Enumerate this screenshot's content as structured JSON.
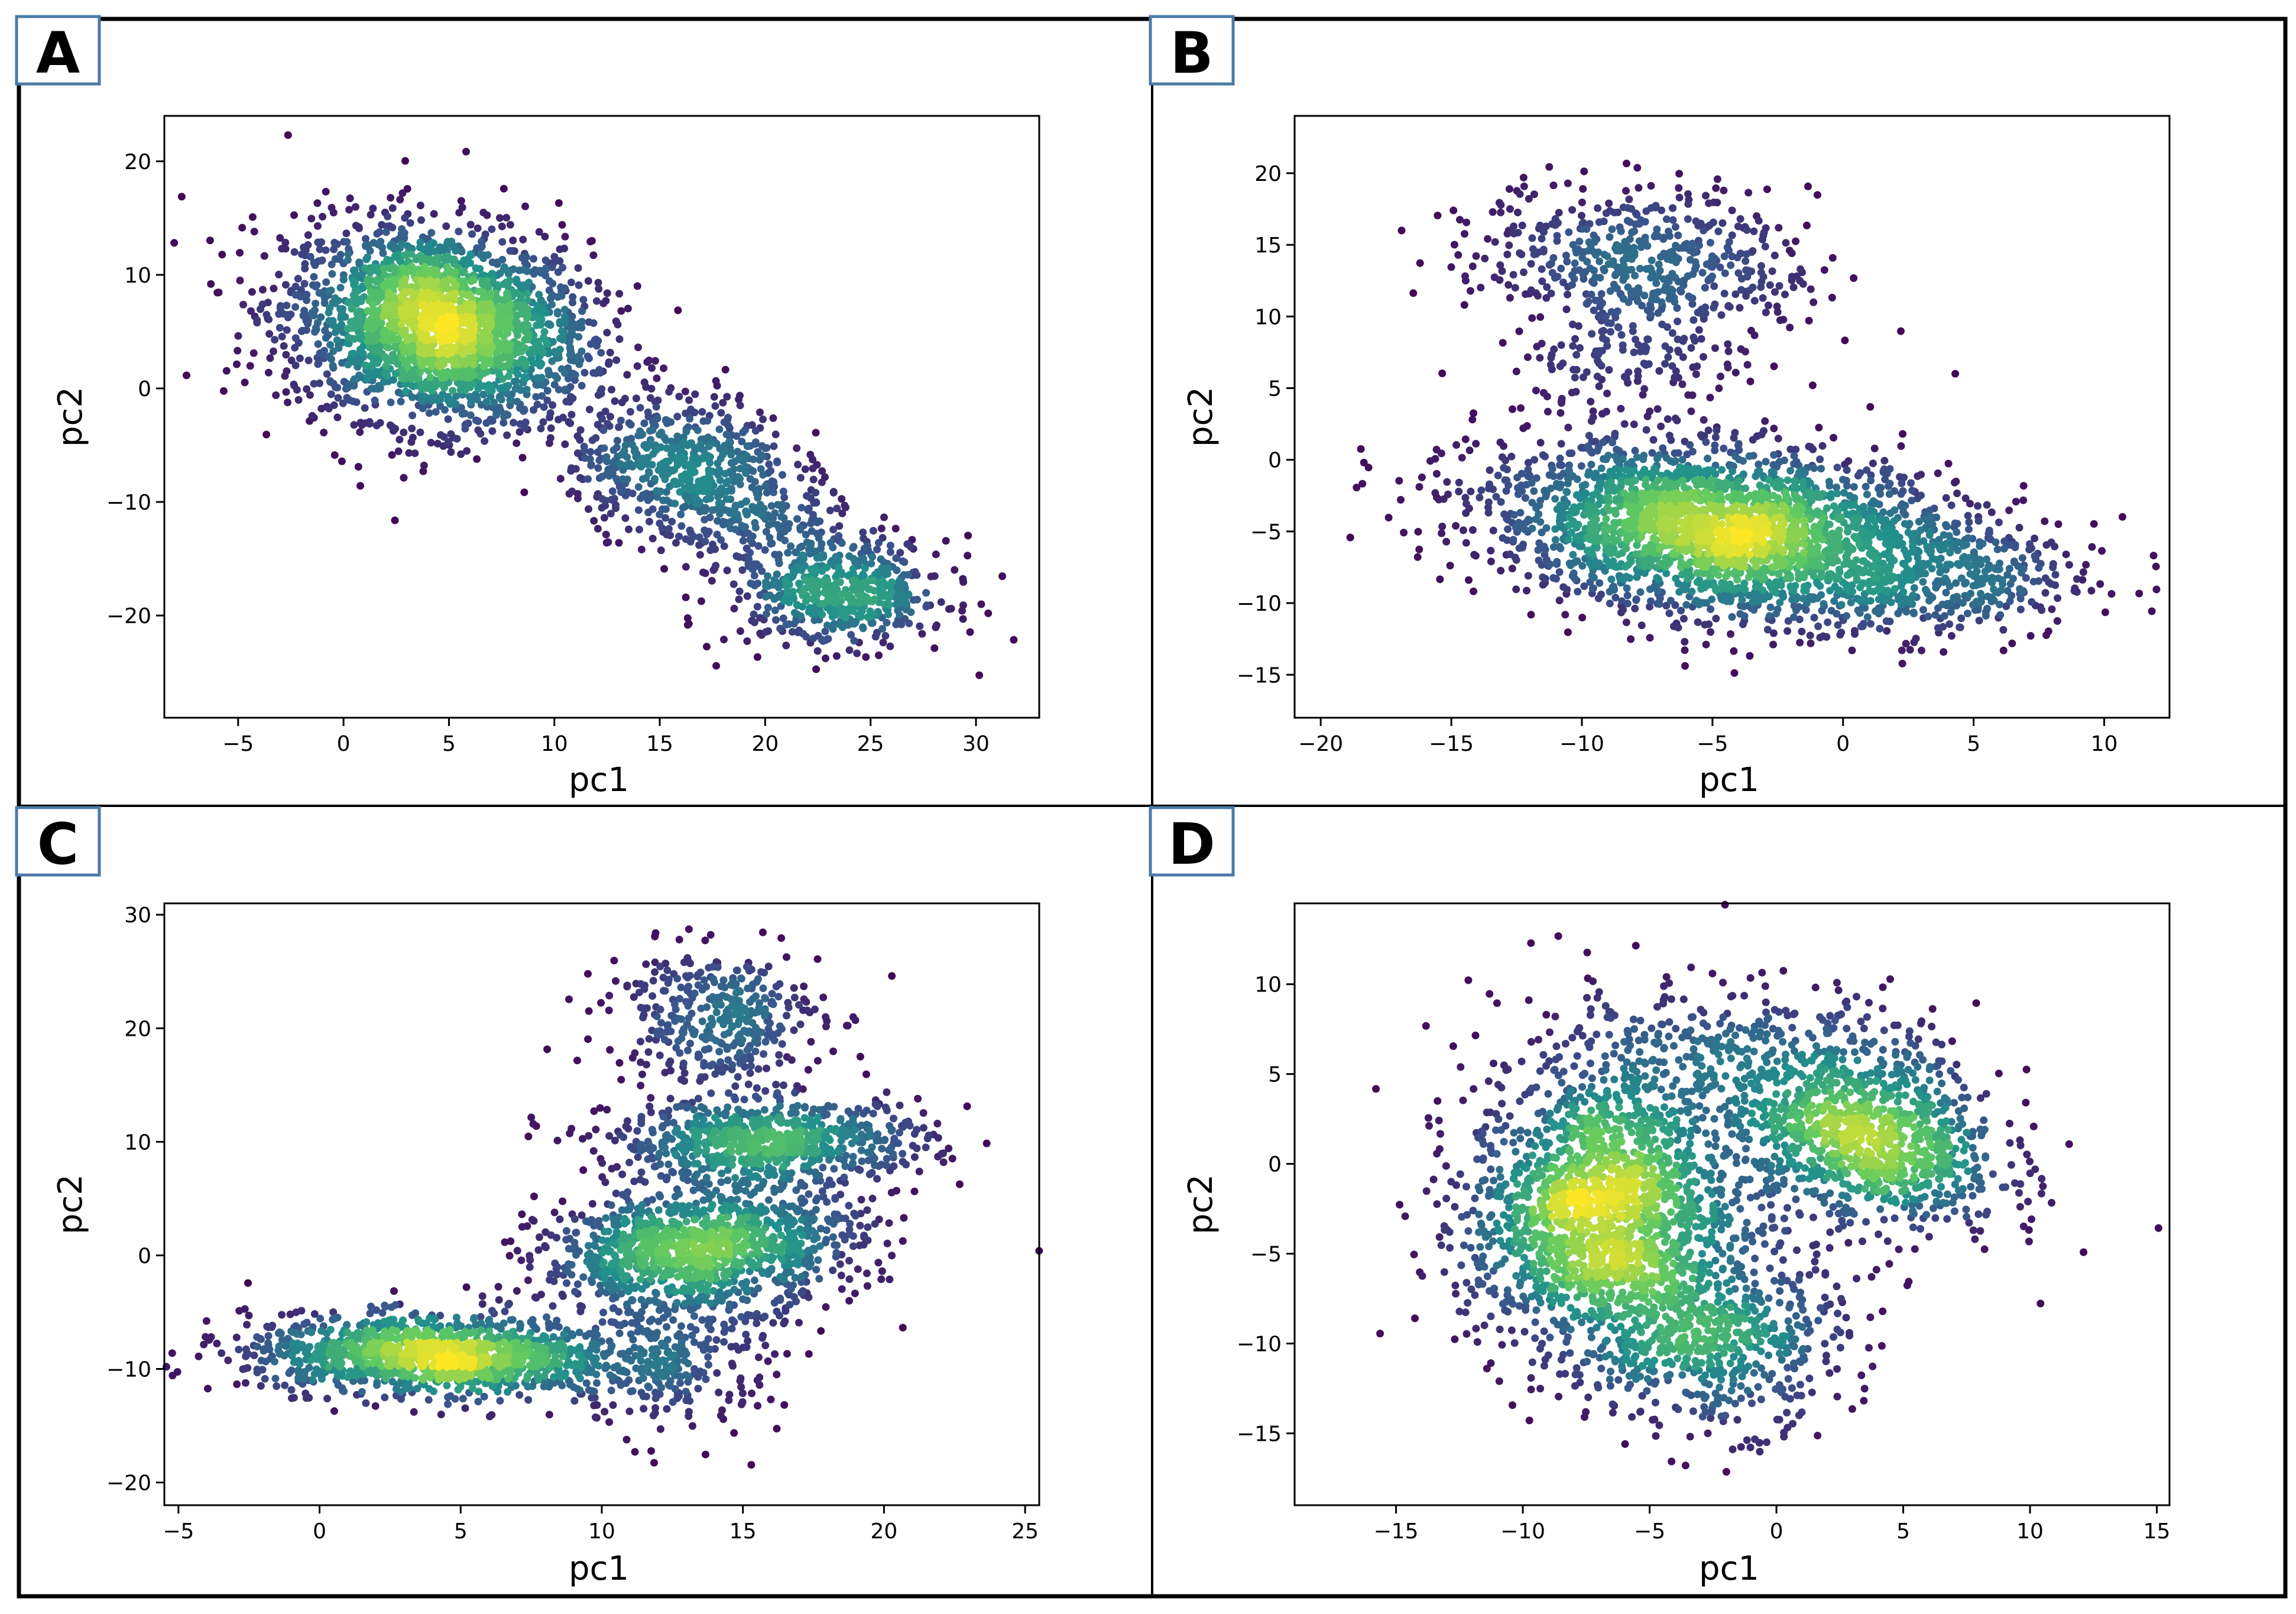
{
  "figure": {
    "colormap": [
      "#440154",
      "#3b528b",
      "#21918c",
      "#5ec962",
      "#fde725"
    ],
    "background": "#ffffff",
    "frame_color": "#000000",
    "letter_box_color": "#4a7aa8"
  },
  "chart_data": [
    {
      "panel": "A",
      "type": "scatter",
      "title": "",
      "xlabel": "pc1",
      "ylabel": "pc2",
      "xlim": [
        -8.5,
        33
      ],
      "ylim": [
        -29,
        24
      ],
      "xticks": [
        -5,
        0,
        5,
        10,
        15,
        20,
        25,
        30
      ],
      "xtick_labels": [
        "−5",
        "0",
        "5",
        "10",
        "15",
        "20",
        "25",
        "30"
      ],
      "yticks": [
        -20,
        -10,
        0,
        10,
        20
      ],
      "ytick_labels": [
        "−20",
        "−10",
        "0",
        "10",
        "20"
      ],
      "colored_by": "point density",
      "clusters": [
        {
          "center": [
            4.5,
            5.5
          ],
          "spread": [
            3.6,
            4.4
          ],
          "corr": -0.15,
          "n": 2300
        },
        {
          "center": [
            16,
            -6.5
          ],
          "spread": [
            2.6,
            3.0
          ],
          "corr": 0.0,
          "n": 520
        },
        {
          "center": [
            23.5,
            -18
          ],
          "spread": [
            2.6,
            2.4
          ],
          "corr": 0.0,
          "n": 560
        },
        {
          "center": [
            19.5,
            -12
          ],
          "spread": [
            2.2,
            2.2
          ],
          "corr": 0.0,
          "n": 180
        }
      ]
    },
    {
      "panel": "B",
      "type": "scatter",
      "title": "",
      "xlabel": "pc1",
      "ylabel": "pc2",
      "xlim": [
        -21,
        12.5
      ],
      "ylim": [
        -18,
        24
      ],
      "xticks": [
        -20,
        -15,
        -10,
        -5,
        0,
        5,
        10
      ],
      "xtick_labels": [
        "−20",
        "−15",
        "−10",
        "−5",
        "0",
        "5",
        "10"
      ],
      "yticks": [
        -15,
        -10,
        -5,
        0,
        5,
        10,
        15,
        20
      ],
      "ytick_labels": [
        "−15",
        "−10",
        "−5",
        "0",
        "5",
        "10",
        "15",
        "20"
      ],
      "colored_by": "point density",
      "clusters": [
        {
          "center": [
            -4.5,
            -5
          ],
          "spread": [
            4.6,
            3.0
          ],
          "corr": -0.25,
          "n": 2600
        },
        {
          "center": [
            -7.5,
            14
          ],
          "spread": [
            3.2,
            2.6
          ],
          "corr": -0.2,
          "n": 520
        },
        {
          "center": [
            4,
            -8.5
          ],
          "spread": [
            2.8,
            2.0
          ],
          "corr": 0.0,
          "n": 280
        },
        {
          "center": [
            -8,
            7
          ],
          "spread": [
            2.5,
            2.2
          ],
          "corr": 0.0,
          "n": 140
        }
      ]
    },
    {
      "panel": "C",
      "type": "scatter",
      "title": "",
      "xlabel": "pc1",
      "ylabel": "pc2",
      "xlim": [
        -5.5,
        25.5
      ],
      "ylim": [
        -22,
        31
      ],
      "xticks": [
        -5,
        0,
        5,
        10,
        15,
        20,
        25
      ],
      "xtick_labels": [
        "−5",
        "0",
        "5",
        "10",
        "15",
        "20",
        "25"
      ],
      "yticks": [
        -20,
        -10,
        0,
        10,
        20,
        30
      ],
      "ytick_labels": [
        "−20",
        "−10",
        "0",
        "10",
        "20",
        "30"
      ],
      "colored_by": "point density",
      "clusters": [
        {
          "center": [
            4,
            -8.8
          ],
          "spread": [
            3.3,
            1.7
          ],
          "corr": -0.1,
          "n": 1300
        },
        {
          "center": [
            13.5,
            0.5
          ],
          "spread": [
            2.8,
            2.8
          ],
          "corr": 0.2,
          "n": 1250
        },
        {
          "center": [
            16,
            10
          ],
          "spread": [
            2.8,
            1.8
          ],
          "corr": 0.0,
          "n": 750
        },
        {
          "center": [
            14,
            21
          ],
          "spread": [
            1.9,
            3.0
          ],
          "corr": 0.0,
          "n": 380
        },
        {
          "center": [
            12.5,
            -9.5
          ],
          "spread": [
            1.9,
            3.2
          ],
          "corr": 0.0,
          "n": 260
        }
      ]
    },
    {
      "panel": "D",
      "type": "scatter",
      "title": "",
      "xlabel": "pc1",
      "ylabel": "pc2",
      "xlim": [
        -19,
        15.5
      ],
      "ylim": [
        -19,
        14.5
      ],
      "xticks": [
        -15,
        -10,
        -5,
        0,
        5,
        10,
        15
      ],
      "xtick_labels": [
        "−15",
        "−10",
        "−5",
        "0",
        "5",
        "10",
        "15"
      ],
      "yticks": [
        -15,
        -10,
        -5,
        0,
        5,
        10
      ],
      "ytick_labels": [
        "−15",
        "−10",
        "−5",
        "0",
        "5",
        "10"
      ],
      "colored_by": "point density",
      "clusters": [
        {
          "center": [
            -7,
            -2.5
          ],
          "spread": [
            2.6,
            3.8
          ],
          "corr": 0.1,
          "n": 1700
        },
        {
          "center": [
            3.5,
            1.5
          ],
          "spread": [
            2.7,
            2.6
          ],
          "corr": -0.25,
          "n": 1050
        },
        {
          "center": [
            -2.5,
            -9.5
          ],
          "spread": [
            2.6,
            2.6
          ],
          "corr": 0.0,
          "n": 650
        },
        {
          "center": [
            -3,
            6
          ],
          "spread": [
            4.5,
            2.2
          ],
          "corr": 0.0,
          "n": 340
        }
      ]
    }
  ]
}
